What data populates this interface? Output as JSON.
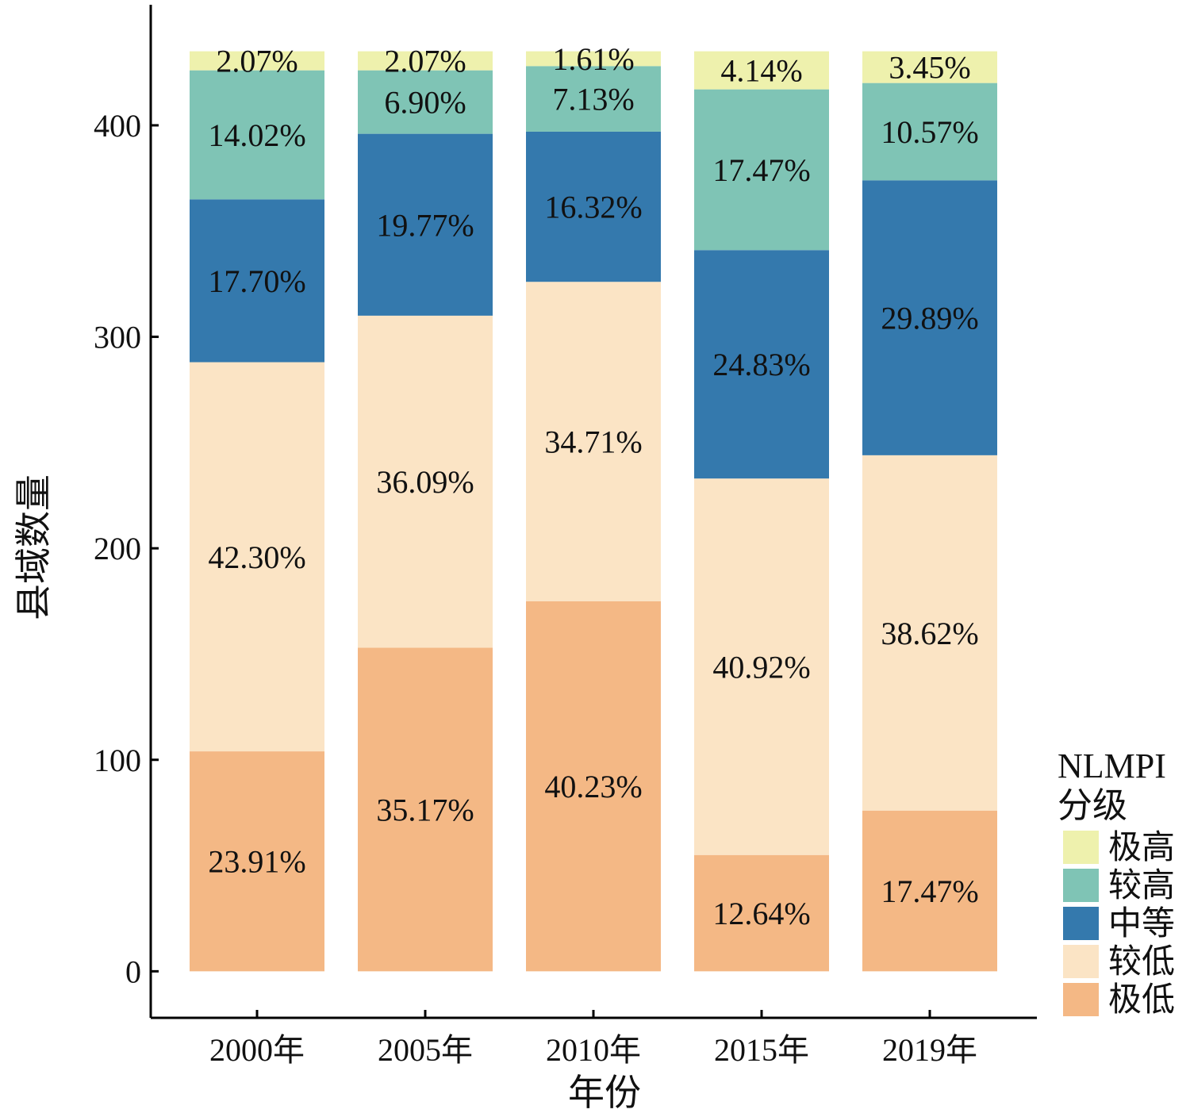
{
  "chart_data": {
    "type": "bar",
    "stacked": true,
    "xlabel": "年份",
    "ylabel": "县域数量",
    "ylim": [
      -22,
      457
    ],
    "yticks": [
      0,
      100,
      200,
      300,
      400
    ],
    "categories": [
      "2000年",
      "2005年",
      "2010年",
      "2015年",
      "2019年"
    ],
    "series": [
      {
        "name": "极低",
        "color": "#f4b885",
        "values": [
          104,
          153,
          175,
          55,
          76
        ],
        "labels": [
          "23.91%",
          "35.17%",
          "40.23%",
          "12.64%",
          "17.47%"
        ]
      },
      {
        "name": "较低",
        "color": "#fbe4c5",
        "values": [
          184,
          157,
          151,
          178,
          168
        ],
        "labels": [
          "42.30%",
          "36.09%",
          "34.71%",
          "40.92%",
          "38.62%"
        ]
      },
      {
        "name": "中等",
        "color": "#3479ad",
        "values": [
          77,
          86,
          71,
          108,
          130
        ],
        "labels": [
          "17.70%",
          "19.77%",
          "16.32%",
          "24.83%",
          "29.89%"
        ]
      },
      {
        "name": "较高",
        "color": "#7fc4b5",
        "values": [
          61,
          30,
          31,
          76,
          46
        ],
        "labels": [
          "14.02%",
          "6.90%",
          "7.13%",
          "17.47%",
          "10.57%"
        ]
      },
      {
        "name": "极高",
        "color": "#eef1ad",
        "values": [
          9,
          9,
          7,
          18,
          15
        ],
        "labels": [
          "2.07%",
          "2.07%",
          "1.61%",
          "4.14%",
          "3.45%"
        ]
      }
    ],
    "legend": {
      "title_line1": "NLMPI",
      "title_line2": "分级",
      "position": "bottom-right",
      "order": [
        "极高",
        "较高",
        "中等",
        "较低",
        "极低"
      ]
    }
  }
}
